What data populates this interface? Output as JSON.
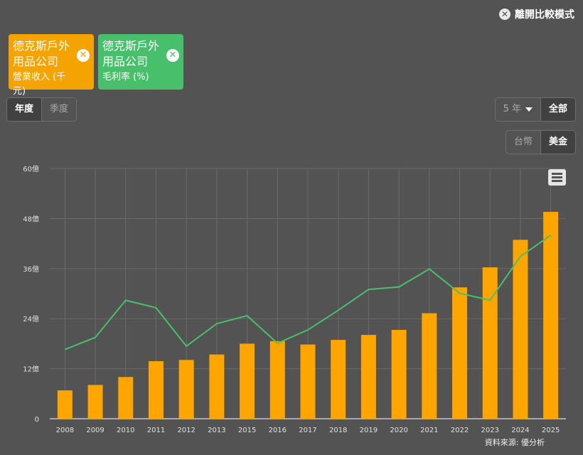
{
  "header": {
    "leave_compare_label": "離開比較模式"
  },
  "tags": [
    {
      "company": "德克斯戶外用品公司",
      "metric": "營業收入 (千元)",
      "color": "#f5a300"
    },
    {
      "company": "德克斯戶外用品公司",
      "metric": "毛利率 (%)",
      "color": "#48c06b"
    }
  ],
  "period_toggle": {
    "options": [
      "年度",
      "季度"
    ],
    "selected": "年度"
  },
  "range_select": {
    "value": "5 年",
    "all_label": "全部"
  },
  "currency_toggle": {
    "options": [
      "台幣",
      "美金"
    ],
    "selected": "美金"
  },
  "chart_data": {
    "type": "bar",
    "categories": [
      "2008",
      "2009",
      "2010",
      "2011",
      "2012",
      "2013",
      "2015",
      "2016",
      "2017",
      "2018",
      "2019",
      "2020",
      "2021",
      "2022",
      "2023",
      "2024",
      "2025"
    ],
    "series": [
      {
        "type": "bar",
        "color": "#ffa500",
        "values": [
          6.8,
          8.1,
          10.0,
          13.8,
          14.1,
          15.4,
          18.0,
          18.6,
          17.8,
          18.9,
          20.1,
          21.3,
          25.3,
          31.5,
          36.3,
          42.9,
          49.6
        ]
      },
      {
        "type": "line",
        "color": "#48c06b",
        "values": [
          16.6,
          19.5,
          28.4,
          26.6,
          17.4,
          22.8,
          24.7,
          18.1,
          21.3,
          26.0,
          31.0,
          31.6,
          35.9,
          30.1,
          28.4,
          38.9,
          44.0
        ]
      }
    ],
    "y_ticks": [
      "0",
      "12億",
      "24億",
      "36億",
      "48億",
      "60億"
    ],
    "ylim": [
      0,
      60
    ],
    "grid": true
  },
  "credit": "資料來源: 優分析"
}
